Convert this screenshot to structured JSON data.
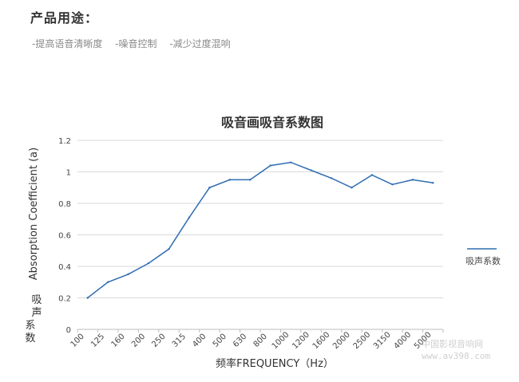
{
  "section": {
    "title": "产品用途：",
    "features": [
      "-提高语音清晰度",
      "-噪音控制",
      "-减少过度混响"
    ]
  },
  "colors": {
    "line": "#2f6db2",
    "grid": "#d9d9d9",
    "axis": "#bdbdbd"
  },
  "watermark": {
    "line1": "中国影视音响网",
    "line2": "www.av398.com"
  },
  "chart_data": {
    "type": "line",
    "title": "吸音画吸音系数图",
    "xlabel": "频率FREQUENCY（Hz）",
    "ylabel_en": "Absorption Coefficient (a)",
    "ylabel_cn": "吸声系数",
    "categories": [
      "100",
      "125",
      "160",
      "200",
      "250",
      "315",
      "400",
      "500",
      "630",
      "800",
      "1000",
      "1200",
      "1600",
      "2000",
      "2500",
      "3150",
      "4000",
      "5000"
    ],
    "series": [
      {
        "name": "吸声系数",
        "values": [
          0.2,
          0.3,
          0.35,
          0.42,
          0.51,
          0.71,
          0.9,
          0.95,
          0.95,
          1.04,
          1.06,
          1.01,
          0.96,
          0.9,
          0.98,
          0.92,
          0.95,
          0.93
        ]
      }
    ],
    "yticks": [
      "0",
      "0.2",
      "0.4",
      "0.6",
      "0.8",
      "1",
      "1.2"
    ],
    "ylim": [
      0,
      1.2
    ],
    "grid": true,
    "legend": "right"
  }
}
